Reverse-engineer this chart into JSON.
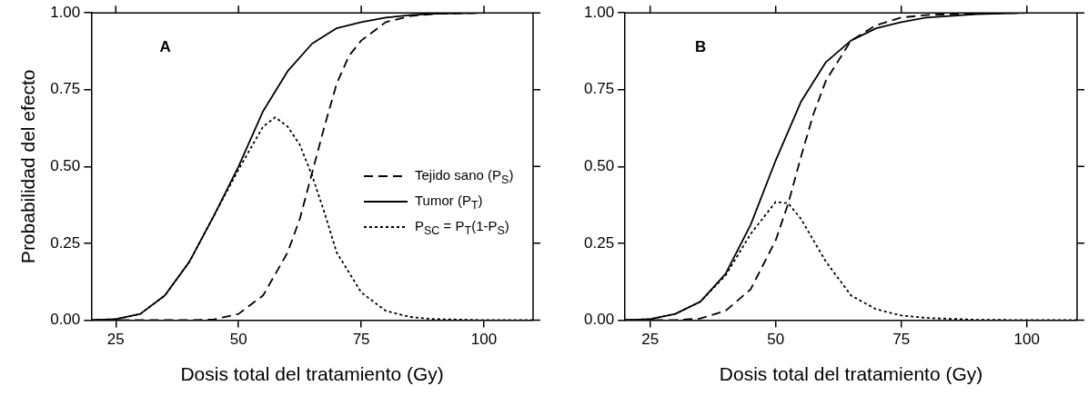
{
  "chart_data": [
    {
      "type": "line",
      "annotations": [
        "A"
      ],
      "xlabel": "Dosis total del tratamiento (Gy)",
      "ylabel": "Probabilidad del efecto",
      "xlim": [
        20,
        110
      ],
      "xticks": [
        25,
        50,
        75,
        100
      ],
      "ylim": [
        0,
        1
      ],
      "yticks": [
        {
          "value": 0,
          "label": "0.00"
        },
        {
          "value": 0.25,
          "label": "0.25"
        },
        {
          "value": 0.5,
          "label": "0.50"
        },
        {
          "value": 0.75,
          "label": "0.75"
        },
        {
          "value": 1,
          "label": "1.00"
        }
      ],
      "grid": false,
      "legend": "right",
      "marker": "none",
      "series": [
        {
          "name": "Tejido sano (P$_{S}$)",
          "color": "#000000",
          "line_style": "dashed",
          "x": [
            20,
            40,
            45,
            50,
            55,
            60,
            62.5,
            65,
            67.5,
            70,
            72.5,
            75,
            80,
            85,
            90,
            100
          ],
          "values": [
            0,
            0,
            0.002,
            0.02,
            0.08,
            0.22,
            0.33,
            0.48,
            0.63,
            0.77,
            0.86,
            0.91,
            0.97,
            0.99,
            0.997,
            1
          ]
        },
        {
          "name": "Tumor (P$_{T}$)",
          "color": "#000000",
          "line_style": "solid",
          "x": [
            20,
            25,
            30,
            35,
            40,
            45,
            50,
            55,
            60,
            65,
            70,
            75,
            80,
            85,
            90,
            100
          ],
          "values": [
            0,
            0.003,
            0.02,
            0.08,
            0.19,
            0.34,
            0.5,
            0.68,
            0.81,
            0.9,
            0.95,
            0.97,
            0.985,
            0.993,
            0.997,
            1
          ]
        },
        {
          "name": "P$_{SC}$ = P$_{T}$(1-P$_{S}$)",
          "color": "#000000",
          "line_style": "dotted",
          "x": [
            20,
            25,
            30,
            35,
            40,
            45,
            50,
            55,
            57.5,
            60,
            62.5,
            65,
            67.5,
            70,
            75,
            80,
            85,
            90,
            100,
            110
          ],
          "values": [
            0,
            0.003,
            0.02,
            0.08,
            0.19,
            0.34,
            0.49,
            0.63,
            0.66,
            0.63,
            0.57,
            0.47,
            0.35,
            0.22,
            0.09,
            0.03,
            0.01,
            0.003,
            0,
            0
          ]
        }
      ]
    },
    {
      "type": "line",
      "annotations": [
        "B"
      ],
      "xlabel": "Dosis total del tratamiento (Gy)",
      "xlim": [
        20,
        110
      ],
      "xticks": [
        25,
        50,
        75,
        100
      ],
      "ylim": [
        0,
        1
      ],
      "yticks": [
        {
          "value": 0,
          "label": "0.00"
        },
        {
          "value": 0.25,
          "label": "0.25"
        },
        {
          "value": 0.5,
          "label": "0.50"
        },
        {
          "value": 0.75,
          "label": "0.75"
        },
        {
          "value": 1,
          "label": "1.00"
        }
      ],
      "grid": false,
      "legend": false,
      "marker": "none",
      "series": [
        {
          "color": "#000000",
          "line_style": "dashed",
          "x": [
            20,
            30,
            35,
            40,
            45,
            50,
            52.5,
            55,
            57.5,
            60,
            65,
            70,
            75,
            80,
            90,
            100,
            110
          ],
          "values": [
            0,
            0,
            0.005,
            0.03,
            0.1,
            0.26,
            0.38,
            0.53,
            0.67,
            0.78,
            0.91,
            0.96,
            0.985,
            0.993,
            0.998,
            1,
            1
          ]
        },
        {
          "color": "#000000",
          "line_style": "solid",
          "x": [
            20,
            25,
            30,
            35,
            40,
            45,
            50,
            55,
            60,
            65,
            70,
            75,
            80,
            90,
            100,
            110
          ],
          "values": [
            0,
            0.003,
            0.02,
            0.06,
            0.15,
            0.31,
            0.52,
            0.71,
            0.84,
            0.91,
            0.95,
            0.97,
            0.985,
            0.996,
            1,
            1
          ]
        },
        {
          "color": "#000000",
          "line_style": "dotted",
          "x": [
            20,
            25,
            30,
            35,
            40,
            45,
            50,
            52.5,
            55,
            60,
            65,
            70,
            75,
            80,
            90,
            100,
            110
          ],
          "values": [
            0,
            0.003,
            0.02,
            0.06,
            0.145,
            0.28,
            0.385,
            0.38,
            0.33,
            0.19,
            0.08,
            0.035,
            0.015,
            0.007,
            0.001,
            0,
            0
          ]
        }
      ]
    }
  ]
}
